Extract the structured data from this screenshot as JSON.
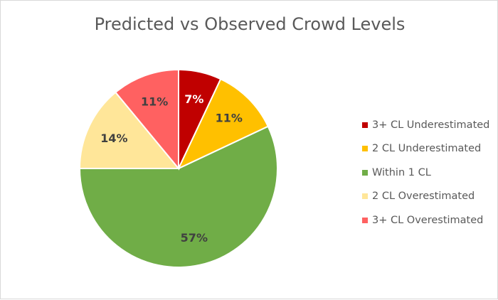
{
  "chart_data": {
    "type": "pie",
    "title": "Predicted vs Observed Crowd Levels",
    "slices": [
      {
        "label": "3+ CL Underestimated",
        "value": 7,
        "value_label": "7%",
        "color": "#c00000",
        "label_color": "#ffffff"
      },
      {
        "label": "2 CL Underestimated",
        "value": 11,
        "value_label": "11%",
        "color": "#ffc000",
        "label_color": "#404040"
      },
      {
        "label": "Within 1 CL",
        "value": 57,
        "value_label": "57%",
        "color": "#70ad47",
        "label_color": "#404040"
      },
      {
        "label": "2 CL Overestimated",
        "value": 14,
        "value_label": "14%",
        "color": "#ffe699",
        "label_color": "#404040"
      },
      {
        "label": "3+ CL Overestimated",
        "value": 11,
        "value_label": "11%",
        "color": "#ff6161",
        "label_color": "#404040"
      }
    ],
    "legend_position": "right"
  }
}
